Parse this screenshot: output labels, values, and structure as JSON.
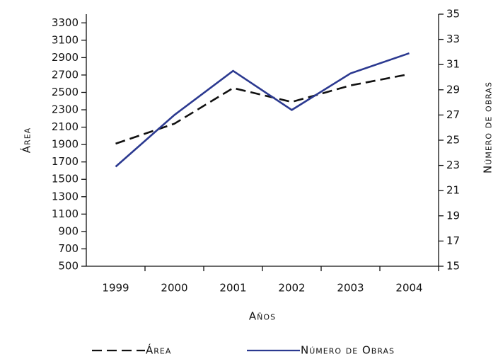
{
  "chart_data": {
    "type": "line",
    "y_label": "Área",
    "y2_label": "Número de obras",
    "x_label": "Años",
    "categories": [
      "1999",
      "2000",
      "2001",
      "2002",
      "2003",
      "2004"
    ],
    "series": [
      {
        "name": "Área",
        "color": "#111111",
        "dashed": true,
        "values": [
          1910,
          2140,
          2550,
          2390,
          2580,
          2710
        ]
      },
      {
        "name": "Número de Obras",
        "color": "#2b3990",
        "dashed": false,
        "axis": "y2",
        "values": [
          22.9,
          27.0,
          30.5,
          27.4,
          30.3,
          31.9
        ]
      }
    ],
    "ylim": [
      500,
      3400
    ],
    "yticks": [
      500,
      700,
      900,
      1100,
      1300,
      1500,
      1700,
      1900,
      2100,
      2300,
      2500,
      2700,
      2900,
      3100,
      3300
    ],
    "y2lim": [
      15,
      35
    ],
    "y2ticks": [
      15,
      17,
      19,
      21,
      23,
      25,
      27,
      29,
      31,
      33,
      35
    ],
    "grid": false
  }
}
